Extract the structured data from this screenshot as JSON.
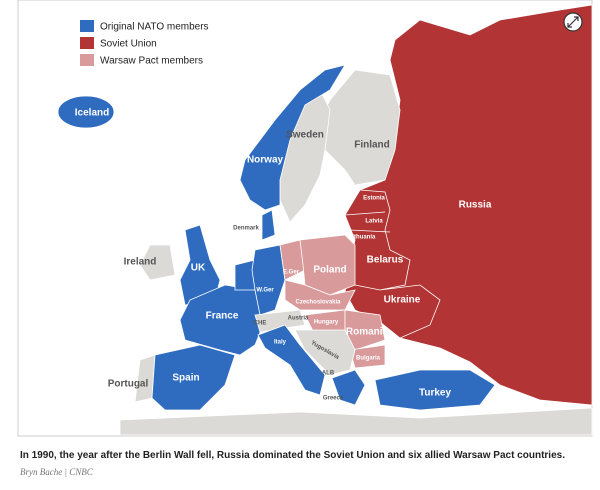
{
  "legend": [
    {
      "label": "Original NATO members",
      "color": "#2f6cc0"
    },
    {
      "label": "Soviet Union",
      "color": "#b23434"
    },
    {
      "label": "Warsaw Pact members",
      "color": "#d99a9b"
    }
  ],
  "labels": [
    "Iceland",
    "Sweden",
    "Finland",
    "Norway",
    "Denmark",
    "Estonia",
    "Latvia",
    "Lithuania",
    "Russia",
    "Ireland",
    "UK",
    "E.Ger",
    "Poland",
    "Belarus",
    "W.Ger",
    "Czechoslovakia",
    "France",
    "Ukraine",
    "CHE",
    "Austria",
    "Hungary",
    "Romania",
    "Yugoslavia",
    "Bulgaria",
    "Italy",
    "Portugal",
    "Spain",
    "ALB",
    "Greece",
    "Turkey"
  ],
  "caption": "In 1990, the year after the Berlin Wall fell, Russia dominated the Soviet Union and six allied Warsaw Pact countries.",
  "credit": "Bryn Bache | CNBC"
}
